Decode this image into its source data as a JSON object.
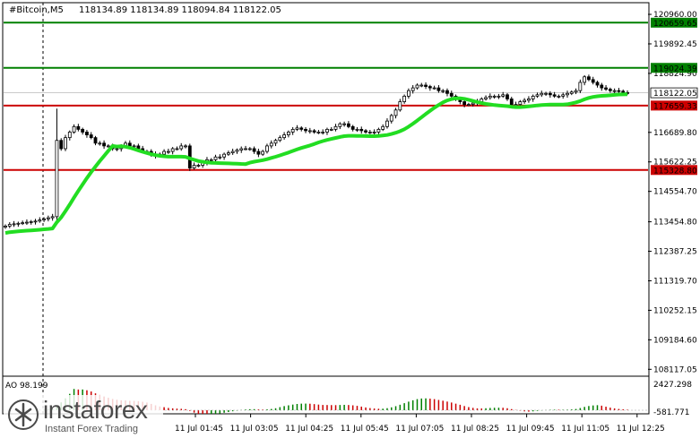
{
  "header": {
    "symbol": "#Bitcoin,M5",
    "ohlc": "118134.89 118134.89 118094.84 118122.05"
  },
  "indicator": {
    "name": "AO 98.199"
  },
  "watermark": {
    "name": "instaforex",
    "tagline": "Instant Forex Trading"
  },
  "colors": {
    "background": "#ffffff",
    "candle": "#000000",
    "ma": "#22dd22",
    "resistance": "#008000",
    "support": "#cc0000",
    "ao_up": "#008000",
    "ao_down": "#cc0000"
  },
  "chart_data": {
    "type": "candlestick",
    "price_axis_ticks": [
      "120960.00",
      "119892.45",
      "118824.90",
      "116689.80",
      "115622.25",
      "114554.70",
      "113454.80",
      "112387.25",
      "111319.70",
      "110252.15",
      "109184.60",
      "108117.05"
    ],
    "ylim": [
      107900,
      121350
    ],
    "time_axis_ticks": [
      "11 Jul 01:45",
      "11 Jul 03:05",
      "11 Jul 04:25",
      "11 Jul 05:45",
      "11 Jul 07:05",
      "11 Jul 08:25",
      "11 Jul 09:45",
      "11 Jul 11:05",
      "11 Jul 12:25"
    ],
    "current_price": "118122.05",
    "levels": [
      {
        "label": "120659.65",
        "value": 120659.65,
        "kind": "resistance"
      },
      {
        "label": "119024.39",
        "value": 119024.39,
        "kind": "resistance"
      },
      {
        "label": "117659.33",
        "value": 117659.33,
        "kind": "support"
      },
      {
        "label": "115328.80",
        "value": 115328.8,
        "kind": "support"
      }
    ],
    "close": [
      113300,
      113360,
      113380,
      113400,
      113420,
      113440,
      113460,
      113480,
      113520,
      113560,
      113600,
      113640,
      116400,
      116100,
      116500,
      116700,
      116900,
      116800,
      116700,
      116600,
      116500,
      116300,
      116300,
      116200,
      116200,
      116100,
      116100,
      116200,
      116300,
      116200,
      116200,
      116100,
      116000,
      116000,
      115900,
      115850,
      115900,
      116000,
      116000,
      116100,
      116100,
      116200,
      116200,
      115400,
      115500,
      115500,
      115600,
      115700,
      115700,
      115800,
      115800,
      115900,
      115950,
      116000,
      116050,
      116100,
      116100,
      116100,
      116000,
      115900,
      116000,
      116200,
      116300,
      116400,
      116500,
      116600,
      116700,
      116800,
      116850,
      116800,
      116750,
      116750,
      116700,
      116700,
      116700,
      116800,
      116800,
      116900,
      117000,
      117000,
      116900,
      116800,
      116800,
      116750,
      116700,
      116700,
      116700,
      116800,
      116900,
      117100,
      117300,
      117500,
      117800,
      118000,
      118200,
      118300,
      118400,
      118400,
      118350,
      118300,
      118300,
      118200,
      118200,
      118100,
      118000,
      117900,
      117800,
      117700,
      117700,
      117750,
      117800,
      117900,
      117950,
      118000,
      118000,
      118000,
      118050,
      117900,
      117700,
      117700,
      117800,
      117850,
      117900,
      118000,
      118050,
      118100,
      118100,
      118050,
      118000,
      118000,
      118050,
      118100,
      118150,
      118200,
      118500,
      118700,
      118600,
      118500,
      118400,
      118300,
      118250,
      118200,
      118200,
      118180,
      118130,
      118122
    ]
  }
}
